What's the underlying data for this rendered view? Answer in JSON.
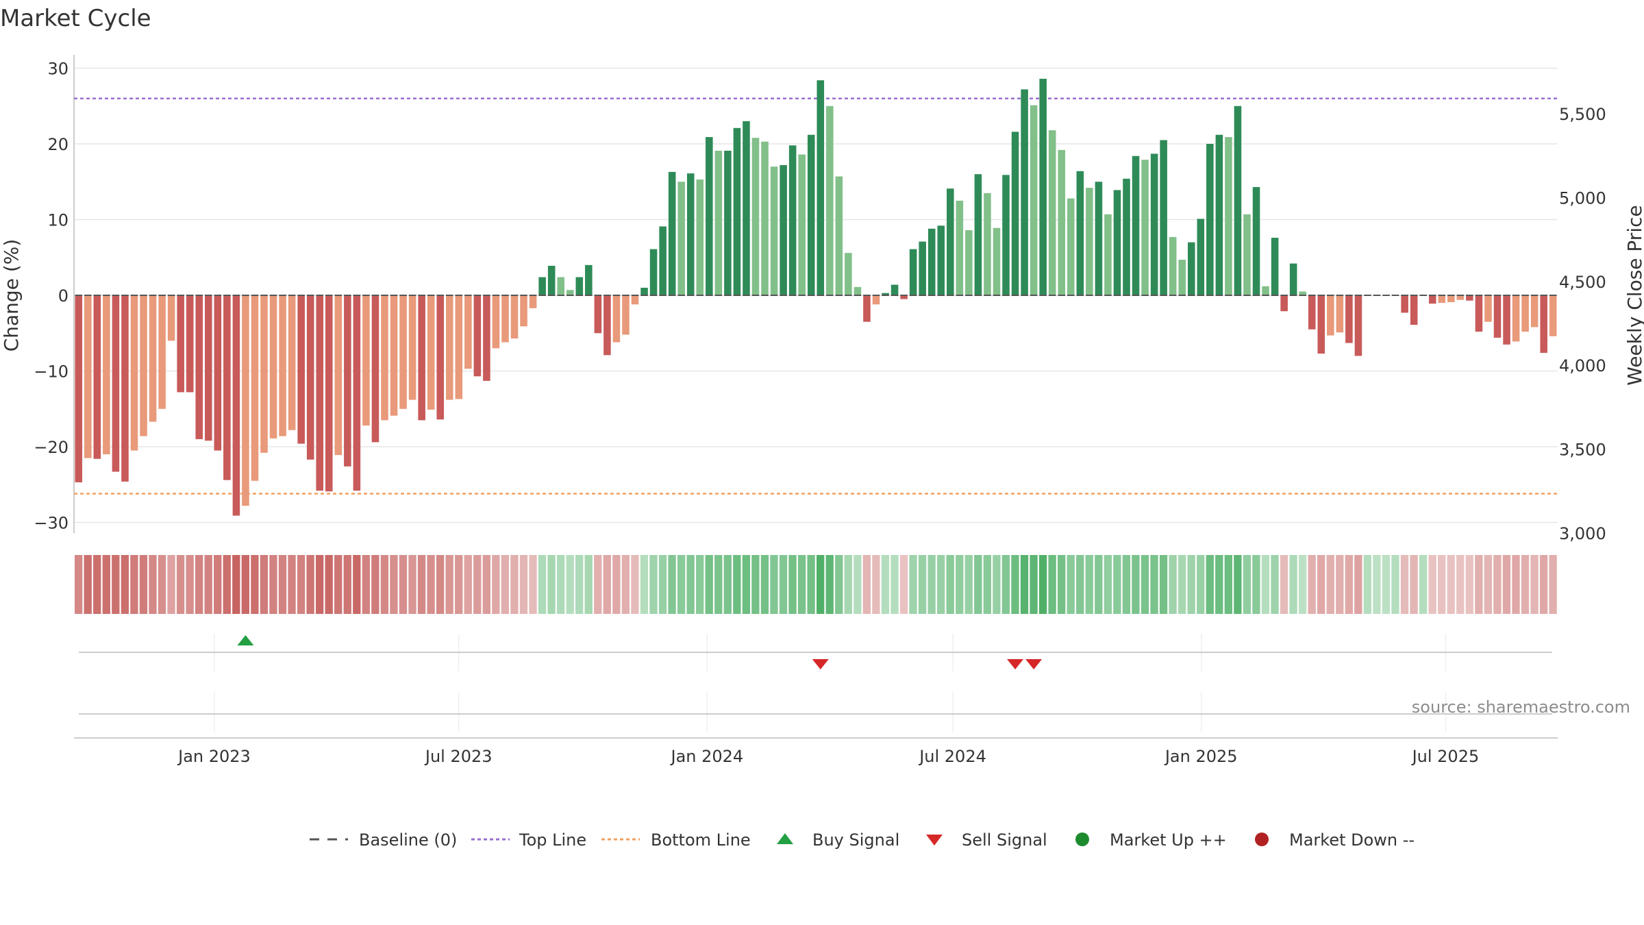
{
  "chart_data": {
    "type": "bar",
    "title": "Market Cycle",
    "ylabel": "Change (%)",
    "y2label": "Weekly Close Price",
    "ylim": [
      -32,
      32
    ],
    "y2lim": [
      3000,
      5800
    ],
    "yticks": [
      30,
      20,
      10,
      0,
      -10,
      -20,
      -30
    ],
    "y2ticks": [
      5500,
      5000,
      4500,
      4000,
      3500,
      3000
    ],
    "top_line": 26,
    "bottom_line": -26.2,
    "x_start": "2022-09-19",
    "x_end": "2025-09-22",
    "x_tick_labels": [
      {
        "date": "2023-01-01",
        "label": "Jan 2023"
      },
      {
        "date": "2023-07-01",
        "label": "Jul 2023"
      },
      {
        "date": "2024-01-01",
        "label": "Jan 2024"
      },
      {
        "date": "2024-07-01",
        "label": "Jul 2024"
      },
      {
        "date": "2025-01-01",
        "label": "Jan 2025"
      },
      {
        "date": "2025-07-01",
        "label": "Jul 2025"
      }
    ],
    "values": [
      -24.7,
      -21.5,
      -21.6,
      -21.0,
      -23.3,
      -24.6,
      -20.5,
      -18.6,
      -16.7,
      -15.0,
      -6.0,
      -12.8,
      -12.8,
      -19.0,
      -19.2,
      -20.5,
      -24.4,
      -29.1,
      -27.8,
      -24.5,
      -20.8,
      -18.9,
      -18.6,
      -17.8,
      -19.6,
      -21.7,
      -25.8,
      -25.9,
      -21.1,
      -22.6,
      -25.8,
      -17.2,
      -19.4,
      -16.5,
      -15.9,
      -15.0,
      -13.8,
      -16.5,
      -15.1,
      -16.4,
      -13.8,
      -13.7,
      -9.7,
      -10.7,
      -11.3,
      -7.0,
      -6.2,
      -5.7,
      -4.1,
      -1.7,
      2.4,
      3.9,
      2.4,
      0.7,
      2.4,
      4.0,
      -5.0,
      -7.9,
      -6.2,
      -5.2,
      -1.2,
      1.0,
      6.1,
      9.1,
      16.3,
      15.0,
      16.1,
      15.3,
      20.9,
      19.1,
      19.1,
      22.1,
      23.0,
      20.8,
      20.3,
      17.0,
      17.2,
      19.8,
      18.6,
      21.2,
      28.4,
      25.0,
      15.7,
      5.6,
      1.1,
      -3.5,
      -1.2,
      0.3,
      1.4,
      -0.5,
      6.1,
      7.1,
      8.8,
      9.2,
      14.1,
      12.5,
      8.6,
      16.0,
      13.5,
      8.9,
      15.9,
      21.6,
      27.2,
      25.1,
      28.6,
      21.8,
      19.2,
      12.8,
      16.4,
      14.2,
      15.0,
      10.7,
      13.9,
      15.4,
      18.4,
      17.9,
      18.7,
      20.5,
      7.7,
      4.7,
      7.0,
      10.1,
      20.0,
      21.2,
      20.9,
      25.0,
      10.7,
      14.3,
      1.2,
      7.6,
      -2.1,
      4.2,
      0.5,
      -4.5,
      -7.7,
      -5.3,
      -4.9,
      -6.3,
      -8.0,
      0,
      0,
      0,
      0,
      -2.3,
      -3.9,
      0,
      -1.1,
      -1.0,
      -0.9,
      -0.6,
      -0.7,
      -4.8,
      -3.5,
      -5.6,
      -6.5,
      -6.1,
      -4.8,
      -4.2,
      -7.6,
      -5.4
    ],
    "cycle_strip": [
      -0.55,
      -0.75,
      -0.75,
      -0.75,
      -0.75,
      -0.75,
      -0.65,
      -0.65,
      -0.55,
      -0.5,
      -0.35,
      -0.5,
      -0.5,
      -0.6,
      -0.6,
      -0.65,
      -0.75,
      -0.85,
      -0.8,
      -0.75,
      -0.65,
      -0.6,
      -0.6,
      -0.6,
      -0.6,
      -0.7,
      -0.8,
      -0.8,
      -0.7,
      -0.7,
      -0.8,
      -0.6,
      -0.65,
      -0.55,
      -0.5,
      -0.5,
      -0.45,
      -0.55,
      -0.5,
      -0.55,
      -0.45,
      -0.45,
      -0.35,
      -0.4,
      -0.4,
      -0.3,
      -0.25,
      -0.25,
      -0.2,
      -0.15,
      0.2,
      0.25,
      0.2,
      0.15,
      0.2,
      0.25,
      -0.25,
      -0.3,
      -0.3,
      -0.25,
      -0.15,
      0.15,
      0.3,
      0.35,
      0.5,
      0.45,
      0.5,
      0.45,
      0.6,
      0.55,
      0.55,
      0.65,
      0.65,
      0.6,
      0.6,
      0.5,
      0.5,
      0.6,
      0.55,
      0.6,
      0.85,
      0.75,
      0.5,
      0.25,
      0.15,
      -0.2,
      -0.15,
      0.15,
      0.15,
      -0.1,
      0.3,
      0.35,
      0.35,
      0.35,
      0.45,
      0.4,
      0.35,
      0.5,
      0.45,
      0.35,
      0.5,
      0.65,
      0.8,
      0.75,
      0.85,
      0.65,
      0.6,
      0.45,
      0.5,
      0.45,
      0.5,
      0.4,
      0.45,
      0.5,
      0.55,
      0.55,
      0.55,
      0.6,
      0.3,
      0.25,
      0.3,
      0.35,
      0.65,
      0.65,
      0.65,
      0.75,
      0.4,
      0.45,
      0.15,
      0.3,
      -0.15,
      0.2,
      0.1,
      -0.25,
      -0.3,
      -0.25,
      -0.25,
      -0.3,
      -0.35,
      0.15,
      0.1,
      0.1,
      0.15,
      -0.15,
      -0.2,
      0.15,
      -0.1,
      -0.1,
      -0.1,
      -0.1,
      -0.1,
      -0.25,
      -0.2,
      -0.25,
      -0.3,
      -0.3,
      -0.25,
      -0.2,
      -0.3,
      -0.25
    ],
    "buy_signals": [
      18
    ],
    "sell_signals": [
      80,
      101,
      103
    ],
    "legend": [
      "Baseline (0)",
      "Top Line",
      "Bottom Line",
      "Buy Signal",
      "Sell Signal",
      "Market Up ++",
      "Market Down --"
    ],
    "legend_position": "bottom-center",
    "grid": true
  },
  "source_text": "source: sharemaestro.com",
  "colors": {
    "strong_down": "#c85a5a",
    "weak_down": "#e89a7a",
    "strong_up": "#2e8b57",
    "weak_up": "#82c08a",
    "top_line": "#9b6fcf",
    "bottom_line": "#f0a060",
    "buy": "#22a043",
    "sell": "#d62728",
    "market_up": "#1e8a2e",
    "market_down": "#b22222",
    "baseline": "#555555"
  }
}
